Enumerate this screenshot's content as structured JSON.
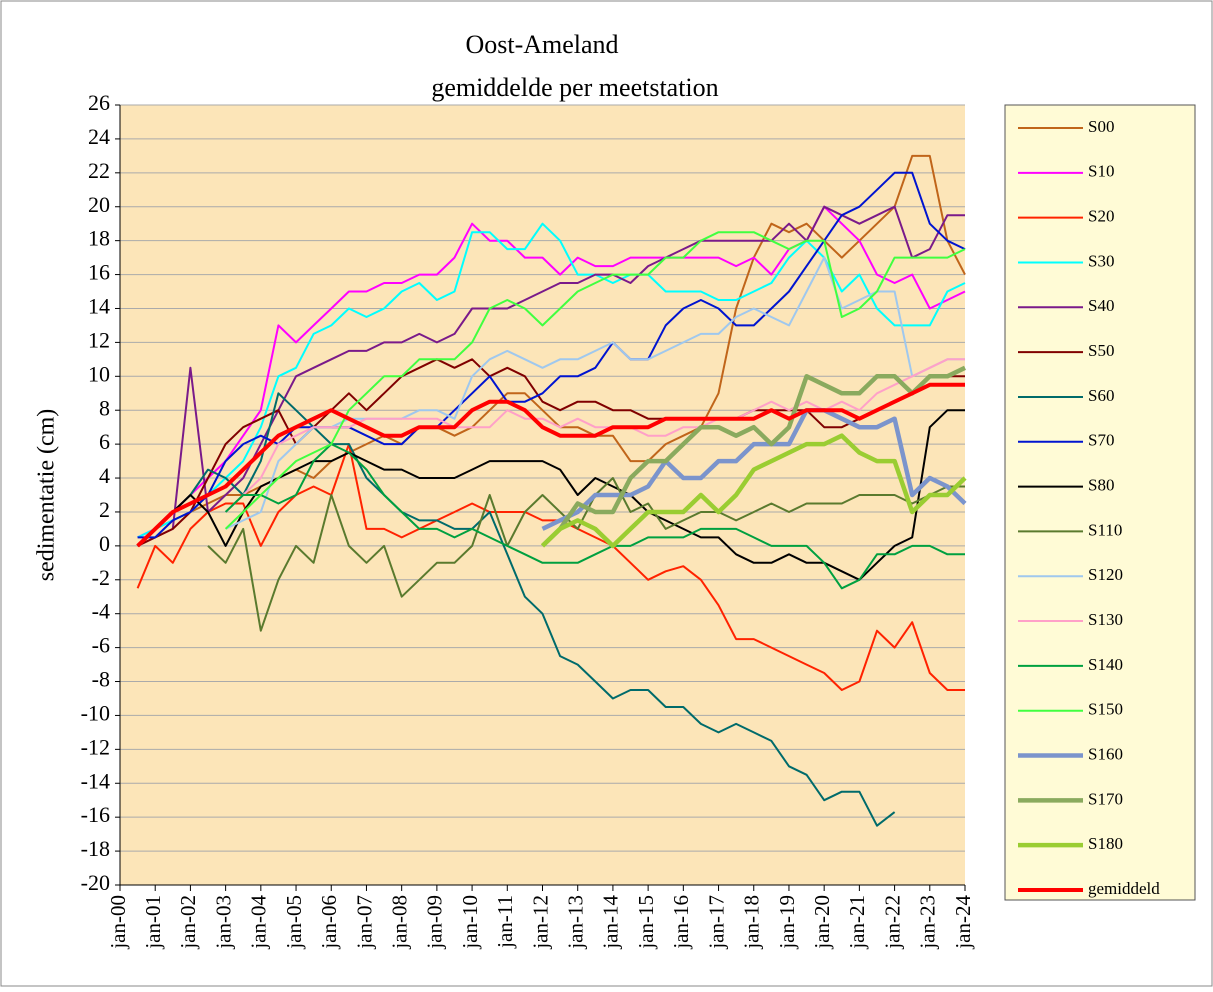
{
  "chart_data": {
    "type": "line",
    "title": "Oost-Ameland",
    "subtitle": "gemiddelde per meetstation",
    "y_label": "sedimentatie (cm)",
    "categories": [
      "jan-00",
      null,
      "jan-01",
      null,
      "jan-02",
      null,
      "jan-03",
      null,
      "jan-04",
      null,
      "jan-05",
      null,
      "jan-06",
      null,
      "jan-07",
      null,
      "jan-08",
      null,
      "jan-09",
      null,
      "jan-10",
      null,
      "jan-11",
      null,
      "jan-12",
      null,
      "jan-13",
      null,
      "jan-14",
      null,
      "jan-15",
      null,
      "jan-16",
      null,
      "jan-17",
      null,
      "jan-18",
      null,
      "jan-19",
      null,
      "jan-20",
      null,
      "jan-21",
      null,
      "jan-22",
      null,
      "jan-23",
      null,
      "jan-24"
    ],
    "ylim": [
      -20,
      26
    ],
    "yticks": [
      -20,
      -18,
      -16,
      -14,
      -12,
      -10,
      -8,
      -6,
      -4,
      -2,
      0,
      2,
      4,
      6,
      8,
      10,
      12,
      14,
      16,
      18,
      20,
      22,
      24,
      26
    ],
    "grid": true,
    "series": [
      {
        "name": "S00",
        "color": "#c0651a",
        "width": 2,
        "values": [
          null,
          0,
          1,
          1.5,
          2,
          2.5,
          3,
          3,
          3.5,
          4,
          4.5,
          4,
          5,
          5.5,
          6,
          6.5,
          6,
          7,
          7,
          6.5,
          7,
          8,
          9,
          9,
          8,
          7,
          7,
          6.5,
          6.5,
          5,
          5,
          6,
          6.5,
          7,
          9,
          14,
          17,
          19,
          18.5,
          19,
          18,
          17,
          18,
          19,
          20,
          23,
          23,
          18,
          16
        ]
      },
      {
        "name": "S10",
        "color": "#ff00ff",
        "width": 2,
        "values": [
          null,
          0.5,
          1,
          2,
          3,
          4,
          5,
          6.5,
          8,
          13,
          12,
          13,
          14,
          15,
          15,
          15.5,
          15.5,
          16,
          16,
          17,
          19,
          18,
          18,
          17,
          17,
          16,
          17,
          16.5,
          16.5,
          17,
          17,
          17,
          17,
          17,
          17,
          16.5,
          17,
          16,
          17.5,
          18,
          20,
          19,
          18,
          16,
          15.5,
          16,
          14,
          14.5,
          15
        ]
      },
      {
        "name": "S20",
        "color": "#ff2200",
        "width": 2,
        "values": [
          null,
          -2.5,
          0,
          -1,
          1,
          2,
          2.5,
          2.5,
          0,
          2,
          3,
          3.5,
          3,
          6,
          1,
          1,
          0.5,
          1,
          1.5,
          2,
          2.5,
          2,
          2,
          2,
          1.5,
          1.5,
          1,
          0.5,
          0,
          -1,
          -2,
          -1.5,
          -1.2,
          -2,
          -3.5,
          -5.5,
          -5.5,
          -6,
          -6.5,
          -7,
          -7.5,
          -8.5,
          -8,
          -5,
          -6,
          -4.5,
          -7.5,
          -8.5,
          -8.5
        ]
      },
      {
        "name": "S30",
        "color": "#00ffff",
        "width": 2,
        "values": [
          null,
          0.5,
          1,
          1.5,
          2,
          3,
          4,
          5,
          7,
          10,
          10.5,
          12.5,
          13,
          14,
          13.5,
          14,
          15,
          15.5,
          14.5,
          15,
          18.5,
          18.5,
          17.5,
          17.5,
          19,
          18,
          16,
          16,
          15.5,
          16,
          16,
          15,
          15,
          15,
          14.5,
          14.5,
          15,
          15.5,
          17,
          18,
          17,
          15,
          16,
          14,
          13,
          13,
          13,
          15,
          15.5
        ]
      },
      {
        "name": "S40",
        "color": "#7a1a8a",
        "width": 2,
        "values": [
          null,
          0,
          0.5,
          1,
          10.5,
          2,
          3,
          4,
          6,
          8,
          10,
          10.5,
          11,
          11.5,
          11.5,
          12,
          12,
          12.5,
          12,
          12.5,
          14,
          14,
          14,
          14.5,
          15,
          15.5,
          15.5,
          16,
          16,
          15.5,
          16.5,
          17,
          17.5,
          18,
          18,
          18,
          18,
          18,
          19,
          18,
          20,
          19.5,
          19,
          19.5,
          20,
          17,
          17.5,
          19.5,
          19.5
        ]
      },
      {
        "name": "S50",
        "color": "#800000",
        "width": 2,
        "values": [
          null,
          0,
          0.5,
          1,
          2,
          4,
          6,
          7,
          7.5,
          8,
          6,
          7,
          8,
          9,
          8,
          9,
          10,
          10.5,
          11,
          10.5,
          11,
          10,
          10.5,
          10,
          8.5,
          8,
          8.5,
          8.5,
          8,
          8,
          7.5,
          7.5,
          7.5,
          7.5,
          7.5,
          7.5,
          8,
          8,
          8,
          8,
          7,
          7,
          7.5,
          8,
          8.5,
          9,
          10,
          10,
          10
        ]
      },
      {
        "name": "S60",
        "color": "#006b6b",
        "width": 2,
        "values": [
          null,
          0,
          1,
          2,
          3,
          4.5,
          4,
          3,
          5,
          9,
          8,
          7,
          6,
          6,
          4,
          3,
          2,
          1.5,
          1.5,
          1,
          1,
          2,
          -0.5,
          -3,
          -4,
          -6.5,
          -7,
          -8,
          -9,
          -8.5,
          -8.5,
          -9.5,
          -9.5,
          -10.5,
          -11,
          -10.5,
          -11,
          -11.5,
          -13,
          -13.5,
          -15,
          -14.5,
          -14.5,
          -16.5,
          -15.7,
          null,
          null,
          null,
          null
        ]
      },
      {
        "name": "S70",
        "color": "#0014d0",
        "width": 2,
        "values": [
          null,
          0.5,
          0.5,
          1.5,
          2,
          3,
          5,
          6,
          6.5,
          6,
          7,
          7,
          7,
          7,
          6.5,
          6,
          6,
          7,
          7,
          8,
          9,
          10,
          8.5,
          8.5,
          9,
          10,
          10,
          10.5,
          12,
          11,
          11,
          13,
          14,
          14.5,
          14,
          13,
          13,
          14,
          15,
          16.5,
          18,
          19.5,
          20,
          21,
          22,
          22,
          19,
          18,
          17.5
        ]
      },
      {
        "name": "S80",
        "color": "#000000",
        "width": 2,
        "values": [
          null,
          0,
          1,
          2,
          3,
          2,
          0,
          2,
          3.5,
          4,
          4.5,
          5,
          5,
          5.5,
          5,
          4.5,
          4.5,
          4,
          4,
          4,
          4.5,
          5,
          5,
          5,
          5,
          4.5,
          3,
          4,
          3.5,
          3,
          2,
          1.5,
          1,
          0.5,
          0.5,
          -0.5,
          -1,
          -1,
          -0.5,
          -1,
          -1,
          -1.5,
          -2,
          -1,
          0,
          0.5,
          7,
          8,
          8
        ]
      },
      {
        "name": "S110",
        "color": "#5a7a2e",
        "width": 2,
        "values": [
          null,
          null,
          null,
          null,
          null,
          0,
          -1,
          1,
          -5,
          -2,
          0,
          -1,
          3,
          0,
          -1,
          0,
          -3,
          -2,
          -1,
          -1,
          0,
          3,
          0,
          2,
          3,
          2,
          1,
          3,
          4,
          2,
          2.5,
          1,
          1.5,
          2,
          2,
          1.5,
          2,
          2.5,
          2,
          2.5,
          2.5,
          2.5,
          3,
          3,
          3,
          2.5,
          3,
          3.5,
          3.5
        ]
      },
      {
        "name": "S120",
        "color": "#9fc8ee",
        "width": 2,
        "values": [
          null,
          null,
          null,
          null,
          null,
          null,
          1,
          1.5,
          2,
          5,
          6,
          7,
          7,
          7.5,
          7.5,
          7.5,
          7.5,
          8,
          8,
          7.5,
          10,
          11,
          11.5,
          11,
          10.5,
          11,
          11,
          11.5,
          12,
          11,
          11,
          11.5,
          12,
          12.5,
          12.5,
          13.5,
          14,
          13.5,
          13,
          15,
          17,
          14,
          14.5,
          15,
          15,
          10,
          10.5,
          11,
          11
        ]
      },
      {
        "name": "S130",
        "color": "#ffa0c8",
        "width": 2,
        "values": [
          null,
          null,
          null,
          null,
          null,
          null,
          2,
          3,
          4,
          6,
          6.5,
          7,
          7,
          7,
          7.5,
          7.5,
          7.5,
          7.5,
          7.5,
          7,
          7,
          7,
          8,
          7.5,
          7.5,
          7,
          7.5,
          7,
          7,
          7,
          6.5,
          6.5,
          7,
          7,
          7.5,
          7.5,
          8,
          8.5,
          8,
          8.5,
          8,
          8.5,
          8,
          9,
          9.5,
          10,
          10.5,
          11,
          11
        ]
      },
      {
        "name": "S140",
        "color": "#00a040",
        "width": 2,
        "values": [
          null,
          null,
          null,
          null,
          null,
          null,
          2,
          3,
          3,
          2.5,
          3,
          5,
          6,
          5.5,
          4.5,
          3,
          2,
          1,
          1,
          0.5,
          1,
          0.5,
          0,
          -0.5,
          -1,
          -1,
          -1,
          -0.5,
          0,
          0,
          0.5,
          0.5,
          0.5,
          1,
          1,
          1,
          0.5,
          0,
          0,
          0,
          -1,
          -2.5,
          -2,
          -0.5,
          -0.5,
          0,
          0,
          -0.5,
          -0.5
        ]
      },
      {
        "name": "S150",
        "color": "#40ff40",
        "width": 2,
        "values": [
          null,
          null,
          null,
          null,
          null,
          null,
          1,
          2,
          3,
          4,
          5,
          5.5,
          6,
          8,
          9,
          10,
          10,
          11,
          11,
          11,
          12,
          14,
          14.5,
          14,
          13,
          14,
          15,
          15.5,
          16,
          16,
          16,
          17,
          17,
          18,
          18.5,
          18.5,
          18.5,
          18,
          17.5,
          18,
          18,
          13.5,
          14,
          15,
          17,
          17,
          17,
          17,
          17.5
        ]
      },
      {
        "name": "S160",
        "color": "#7b94cc",
        "width": 4.5,
        "values": [
          null,
          null,
          null,
          null,
          null,
          null,
          null,
          null,
          null,
          null,
          null,
          null,
          null,
          null,
          null,
          null,
          null,
          null,
          null,
          null,
          null,
          null,
          null,
          null,
          1,
          1.5,
          2,
          3,
          3,
          3,
          3.5,
          5,
          4,
          4,
          5,
          5,
          6,
          6,
          6,
          8,
          8,
          7.5,
          7,
          7,
          7.5,
          3,
          4,
          3.5,
          2.5
        ]
      },
      {
        "name": "S170",
        "color": "#8aaa5e",
        "width": 4.5,
        "values": [
          null,
          null,
          null,
          null,
          null,
          null,
          null,
          null,
          null,
          null,
          null,
          null,
          null,
          null,
          null,
          null,
          null,
          null,
          null,
          null,
          null,
          null,
          null,
          null,
          0,
          1,
          2.5,
          2,
          2,
          4,
          5,
          5,
          6,
          7,
          7,
          6.5,
          7,
          6,
          7,
          10,
          9.5,
          9,
          9,
          10,
          10,
          9,
          10,
          10,
          10.5
        ]
      },
      {
        "name": "S180",
        "color": "#9acd32",
        "width": 4.5,
        "values": [
          null,
          null,
          null,
          null,
          null,
          null,
          null,
          null,
          null,
          null,
          null,
          null,
          null,
          null,
          null,
          null,
          null,
          null,
          null,
          null,
          null,
          null,
          null,
          null,
          0,
          1,
          1.5,
          1,
          0,
          1,
          2,
          2,
          2,
          3,
          2,
          3,
          4.5,
          5,
          5.5,
          6,
          6,
          6.5,
          5.5,
          5,
          5,
          2,
          3,
          3,
          4
        ]
      },
      {
        "name": "gemiddeld",
        "color": "#ff0000",
        "width": 4,
        "values": [
          null,
          0,
          1,
          2,
          2.5,
          3,
          3.5,
          4.5,
          5.5,
          6.5,
          7,
          7.5,
          8,
          7.5,
          7,
          6.5,
          6.5,
          7,
          7,
          7,
          8,
          8.5,
          8.5,
          8,
          7,
          6.5,
          6.5,
          6.5,
          7,
          7,
          7,
          7.5,
          7.5,
          7.5,
          7.5,
          7.5,
          7.5,
          8,
          7.5,
          8,
          8,
          8,
          7.5,
          8,
          8.5,
          9,
          9.5,
          9.5,
          9.5
        ]
      }
    ]
  }
}
